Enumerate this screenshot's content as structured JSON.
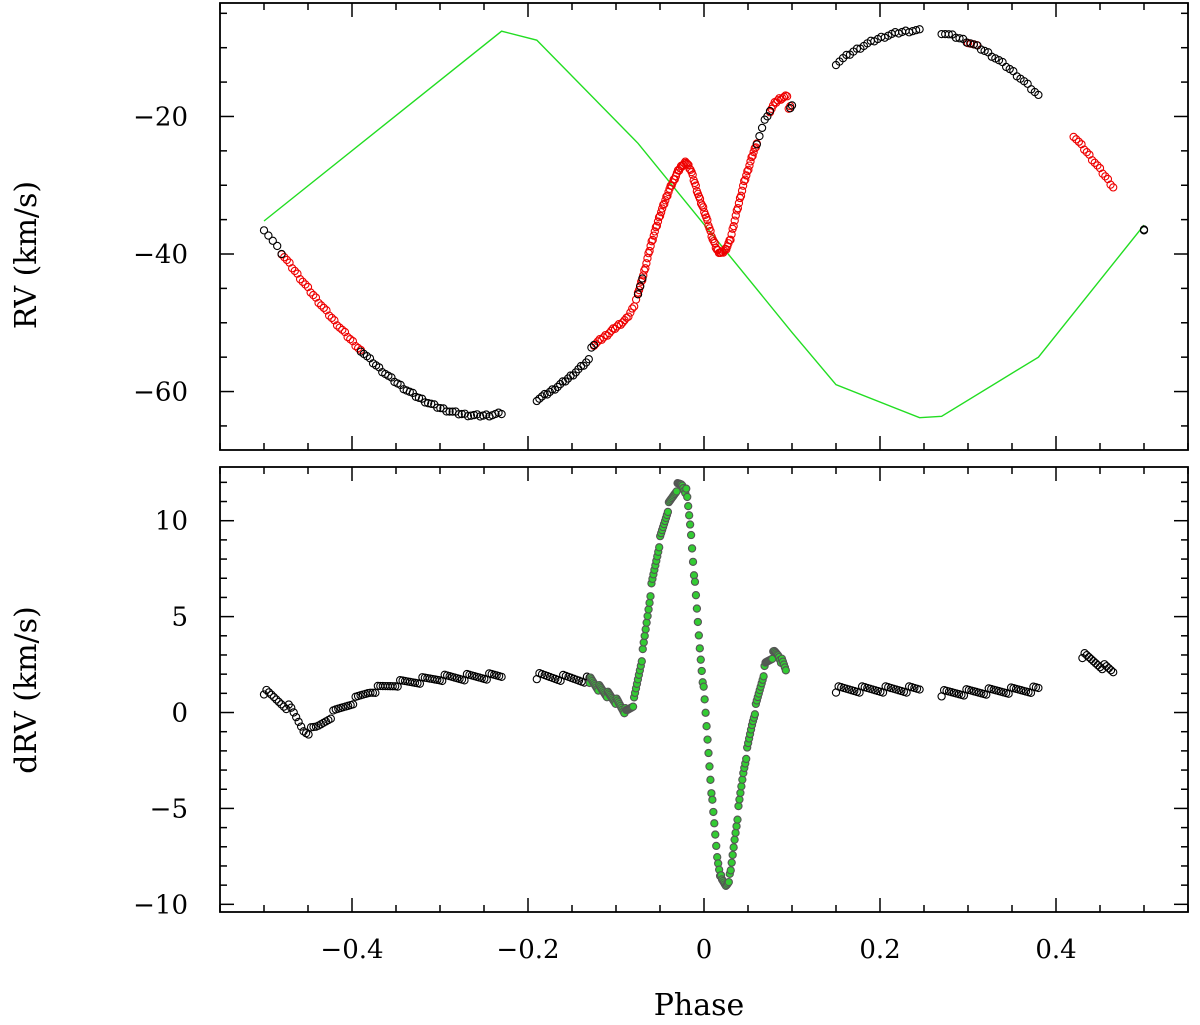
{
  "chart_data": [
    {
      "type": "scatter",
      "title": "",
      "xlabel": "",
      "ylabel": "RV  (km/s)",
      "xlim": [
        -0.55,
        0.55
      ],
      "ylim": [
        -68.5,
        -3.5
      ],
      "xticks": [
        "−0.4",
        "−0.2",
        "0",
        "0.2",
        "0.4"
      ],
      "yticks": [
        "−20",
        "−40",
        "−60"
      ],
      "ytick_values": [
        -20,
        -40,
        -60
      ],
      "grid": false,
      "colors": {
        "observed": "#000000",
        "flagged": "#ee0000",
        "model": "#22dd22"
      },
      "series": [
        {
          "role": "observed",
          "marker": "open-circle",
          "color": "#000000",
          "segments": [
            {
              "x_start": -0.5,
              "x_end": -0.48,
              "step": 0.005
            },
            {
              "x_start": -0.39,
              "x_end": -0.23,
              "step": 0.0035
            },
            {
              "x_start": -0.19,
              "x_end": -0.125,
              "step": 0.003
            },
            {
              "x_start": -0.075,
              "x_end": -0.07,
              "step": 0.0025
            },
            {
              "x_start": 0.06,
              "x_end": 0.075,
              "step": 0.003
            },
            {
              "x_start": 0.098,
              "x_end": 0.1,
              "step": 0.002
            },
            {
              "x_start": 0.15,
              "x_end": 0.245,
              "step": 0.004
            },
            {
              "x_start": 0.27,
              "x_end": 0.38,
              "step": 0.004
            },
            {
              "x_start": 0.5,
              "x_end": 0.5,
              "step": 0.01
            }
          ]
        },
        {
          "role": "flagged",
          "marker": "open-circle",
          "color": "#ee0000",
          "segments": [
            {
              "x_start": -0.48,
              "x_end": -0.39,
              "step": 0.003
            },
            {
              "x_start": -0.125,
              "x_end": -0.075,
              "step": 0.0022
            },
            {
              "x_start": -0.075,
              "x_end": 0.06,
              "step": 0.0012
            },
            {
              "x_start": 0.075,
              "x_end": 0.098,
              "step": 0.0018
            },
            {
              "x_start": 0.3,
              "x_end": 0.31,
              "step": 0.003
            },
            {
              "x_start": 0.42,
              "x_end": 0.465,
              "step": 0.003
            }
          ]
        },
        {
          "role": "model",
          "type": "line",
          "color": "#22dd22",
          "x": [
            -0.5,
            -0.23,
            -0.19,
            -0.075,
            0.1,
            0.15,
            0.245,
            0.27,
            0.38,
            0.5
          ],
          "y": [
            -35.2,
            -7.6,
            -8.9,
            -23.9,
            -51.4,
            -59.0,
            -63.8,
            -63.6,
            -55.0,
            -35.8
          ]
        }
      ]
    },
    {
      "type": "scatter",
      "title": "",
      "xlabel": "Phase",
      "ylabel": "dRV  (km/s)",
      "xlim": [
        -0.55,
        0.55
      ],
      "ylim": [
        -10.4,
        12.8
      ],
      "xticks": [
        "−0.4",
        "−0.2",
        "0",
        "0.2",
        "0.4"
      ],
      "xtick_values": [
        -0.4,
        -0.2,
        0,
        0.2,
        0.4
      ],
      "yticks": [
        "10",
        "5",
        "0",
        "−5",
        "−10"
      ],
      "ytick_values": [
        10,
        5,
        0,
        -5,
        -10
      ],
      "grid": false,
      "series": [
        {
          "role": "residual",
          "marker": "open-circle",
          "color": "#000000",
          "segments": [
            {
              "x_start": -0.5,
              "x_end": -0.23,
              "step": 0.0028
            },
            {
              "x_start": -0.19,
              "x_end": -0.13,
              "step": 0.003
            },
            {
              "x_start": 0.15,
              "x_end": 0.245,
              "step": 0.003
            },
            {
              "x_start": 0.27,
              "x_end": 0.38,
              "step": 0.0028
            },
            {
              "x_start": 0.43,
              "x_end": 0.465,
              "step": 0.0025
            }
          ]
        },
        {
          "role": "flagged-residual",
          "marker": "filled-circle",
          "color": "#33cc33",
          "segments": [
            {
              "x_start": -0.13,
              "x_end": 0.093,
              "step": 0.0011
            }
          ]
        }
      ],
      "profile_points": {
        "x": [
          -0.5,
          -0.47,
          -0.455,
          -0.45,
          -0.44,
          -0.42,
          -0.38,
          -0.35,
          -0.3,
          -0.23,
          -0.19,
          -0.13,
          -0.12,
          -0.1,
          -0.088,
          -0.08,
          -0.07,
          -0.06,
          -0.05,
          -0.04,
          -0.03,
          -0.025,
          -0.02,
          -0.015,
          -0.01,
          -0.005,
          0.0,
          0.005,
          0.01,
          0.015,
          0.02,
          0.025,
          0.03,
          0.035,
          0.045,
          0.055,
          0.065,
          0.07,
          0.08,
          0.085,
          0.093,
          0.15,
          0.245,
          0.27,
          0.38,
          0.43,
          0.465
        ],
        "y": [
          1.1,
          0.2,
          -0.9,
          -1.0,
          -0.8,
          0.0,
          1.1,
          1.5,
          1.8,
          1.9,
          1.9,
          1.7,
          1.3,
          0.6,
          0.0,
          0.5,
          3.0,
          6.5,
          9.0,
          10.8,
          11.8,
          11.9,
          11.5,
          9.5,
          6.5,
          3.5,
          1.0,
          -2.0,
          -5.0,
          -7.5,
          -8.8,
          -9.0,
          -8.5,
          -6.5,
          -3.0,
          -0.5,
          1.5,
          2.5,
          3.1,
          3.0,
          2.2,
          1.2,
          1.2,
          1.0,
          1.2,
          3.0,
          2.1
        ]
      }
    }
  ]
}
